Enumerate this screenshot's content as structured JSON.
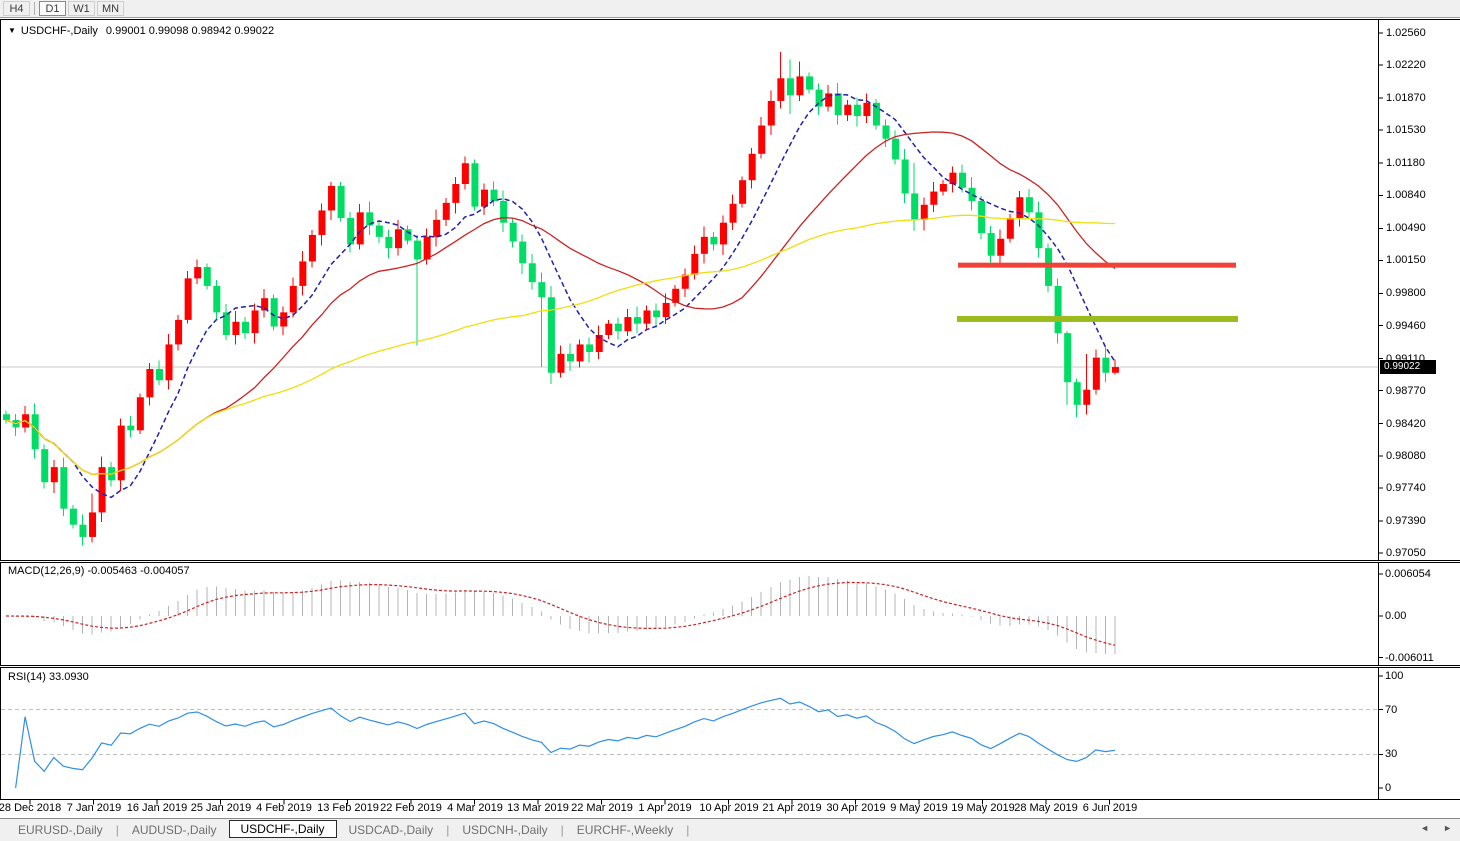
{
  "toolbar": {
    "buttons": [
      {
        "label": "H4",
        "active": false
      },
      {
        "label": "D1",
        "active": true
      },
      {
        "label": "W1",
        "active": false
      },
      {
        "label": "MN",
        "active": false
      }
    ]
  },
  "chart": {
    "dropdown_icon": "▼",
    "symbol": "USDCHF-,Daily",
    "ohlc": "0.99001 0.99098 0.98942 0.99022"
  },
  "price_axis": {
    "labels": [
      "1.02560",
      "1.02220",
      "1.01870",
      "1.01530",
      "1.01180",
      "1.00840",
      "1.00490",
      "1.00150",
      "0.99800",
      "0.99460",
      "0.99110",
      "0.98770",
      "0.98420",
      "0.98080",
      "0.97740",
      "0.97390",
      "0.97050"
    ],
    "current_price": "0.99022"
  },
  "macd_panel": {
    "name": "MACD(12,26,9)",
    "values": "-0.005463 -0.004057",
    "scale_labels": [
      {
        "text": "0.006054",
        "value": 0.006054
      },
      {
        "text": "0.00",
        "value": 0
      },
      {
        "text": "-0.006011",
        "value": -0.006011
      }
    ]
  },
  "rsi_panel": {
    "name": "RSI(14)",
    "value": "33.0930",
    "scale_labels": [
      {
        "text": "100",
        "value": 100
      },
      {
        "text": "70",
        "value": 70
      },
      {
        "text": "30",
        "value": 30
      },
      {
        "text": "0",
        "value": 0
      }
    ]
  },
  "date_axis": {
    "labels": [
      "28 Dec 2018",
      "7 Jan 2019",
      "16 Jan 2019",
      "25 Jan 2019",
      "4 Feb 2019",
      "13 Feb 2019",
      "22 Feb 2019",
      "4 Mar 2019",
      "13 Mar 2019",
      "22 Mar 2019",
      "1 Apr 2019",
      "10 Apr 2019",
      "21 Apr 2019",
      "30 Apr 2019",
      "9 May 2019",
      "19 May 2019",
      "28 May 2019",
      "6 Jun 2019"
    ]
  },
  "tab_bar": {
    "tabs": [
      {
        "label": "EURUSD-,Daily",
        "active": false
      },
      {
        "label": "AUDUSD-,Daily",
        "active": false
      },
      {
        "label": "USDCHF-,Daily",
        "active": true
      },
      {
        "label": "USDCAD-,Daily",
        "active": false
      },
      {
        "label": "USDCNH-,Daily",
        "active": false
      },
      {
        "label": "EURCHF-,Weekly",
        "active": false
      }
    ],
    "scroll_left": "◄",
    "scroll_right": "►"
  },
  "chart_data": {
    "type": "candlestick",
    "symbol": "USDCHF",
    "timeframe": "Daily",
    "title": "USDCHF-,Daily",
    "ohlc_current": {
      "open": 0.99001,
      "high": 0.99098,
      "low": 0.98942,
      "close": 0.99022
    },
    "ylim": [
      0.9705,
      1.0256
    ],
    "x_labels": [
      "28 Dec 2018",
      "7 Jan 2019",
      "16 Jan 2019",
      "25 Jan 2019",
      "4 Feb 2019",
      "13 Feb 2019",
      "22 Feb 2019",
      "4 Mar 2019",
      "13 Mar 2019",
      "22 Mar 2019",
      "1 Apr 2019",
      "10 Apr 2019",
      "21 Apr 2019",
      "30 Apr 2019",
      "9 May 2019",
      "19 May 2019",
      "28 May 2019",
      "6 Jun 2019"
    ],
    "first_open": 0.9852,
    "closes": [
      0.9846,
      0.9838,
      0.9852,
      0.9815,
      0.978,
      0.9796,
      0.9752,
      0.9735,
      0.9722,
      0.9748,
      0.9796,
      0.9782,
      0.984,
      0.9835,
      0.987,
      0.99,
      0.9888,
      0.9926,
      0.9952,
      0.9996,
      1.0008,
      0.9988,
      0.996,
      0.9936,
      0.995,
      0.9938,
      0.9962,
      0.9975,
      0.9945,
      0.996,
      0.9988,
      1.0014,
      1.0042,
      1.0068,
      1.0094,
      1.006,
      1.0032,
      1.0066,
      1.0052,
      1.004,
      1.0028,
      1.0048,
      1.0036,
      1.0016,
      1.004,
      1.0058,
      1.0076,
      1.0096,
      1.0118,
      1.0072,
      1.009,
      1.0078,
      1.0055,
      1.0035,
      1.0012,
      0.9992,
      0.9976,
      0.9896,
      0.9916,
      0.9908,
      0.9926,
      0.9918,
      0.9936,
      0.9948,
      0.994,
      0.9955,
      0.9948,
      0.9962,
      0.9955,
      0.997,
      0.9985,
      1.0,
      1.0022,
      1.004,
      1.0032,
      1.0055,
      1.0075,
      1.01,
      1.0128,
      1.0158,
      1.0184,
      1.0208,
      1.019,
      1.021,
      1.0196,
      1.0178,
      1.0192,
      1.0169,
      1.018,
      1.0168,
      1.0182,
      1.0158,
      1.0144,
      1.0122,
      1.0086,
      1.0058,
      1.0074,
      1.0088,
      1.0096,
      1.0108,
      1.0092,
      1.0078,
      1.0044,
      1.002,
      1.0038,
      1.006,
      1.0082,
      1.0066,
      1.0028,
      0.9988,
      0.9938,
      0.9886,
      0.9862,
      0.9878,
      0.9912,
      0.9896,
      0.9902
    ],
    "wick_overrides": {
      "8": [
        0.9746,
        0.9713
      ],
      "9": [
        0.9768,
        0.9716
      ],
      "19": [
        1.0004,
        0.9948
      ],
      "20": [
        1.0016,
        0.999
      ],
      "34": [
        1.0098,
        1.0058
      ],
      "43": [
        1.0042,
        0.9925
      ],
      "48": [
        1.0125,
        1.009
      ],
      "56": [
        1.0002,
        0.9902
      ],
      "57": [
        0.9988,
        0.9884
      ],
      "81": [
        1.0236,
        1.0176
      ],
      "82": [
        1.0228,
        1.017
      ],
      "83": [
        1.0226,
        1.0184
      ],
      "95": [
        1.0118,
        1.0046
      ],
      "111": [
        0.994,
        0.9862
      ],
      "112": [
        0.989,
        0.9849
      ],
      "113": [
        0.9916,
        0.9852
      ],
      "116": [
        0.991,
        0.9894
      ]
    },
    "candle_colors": {
      "up": "#ff0000",
      "down": "#00dc64"
    },
    "overlays": {
      "horizontal_line_red": {
        "price": 1.001,
        "color": "#ef4338",
        "x_from": 958,
        "x_to": 1236
      },
      "horizontal_line_olive": {
        "price": 0.9953,
        "color": "#9cbb1e",
        "x_from": 957,
        "x_to": 1238
      },
      "current_price_line": {
        "price": 0.99022,
        "color": "#c8c8c8"
      }
    },
    "moving_averages": [
      {
        "period": 8,
        "color": "#2121aa",
        "style": "dash"
      },
      {
        "period": 21,
        "color": "#cc2222",
        "style": "solid"
      },
      {
        "period": 55,
        "color": "#efdf0e",
        "style": "solid"
      }
    ],
    "macd": {
      "fast": 12,
      "slow": 26,
      "signal": 9,
      "ylim": [
        -0.006011,
        0.006054
      ],
      "histogram_color": "#b4b4b4",
      "signal_color": "#cc2222",
      "current_main": -0.005463,
      "current_signal": -0.004057
    },
    "rsi": {
      "period": 14,
      "current": 33.093,
      "color": "#2e8fe8",
      "levels": [
        70,
        30
      ],
      "level_color": "#c0c0c0",
      "ylim": [
        0,
        100
      ]
    }
  }
}
